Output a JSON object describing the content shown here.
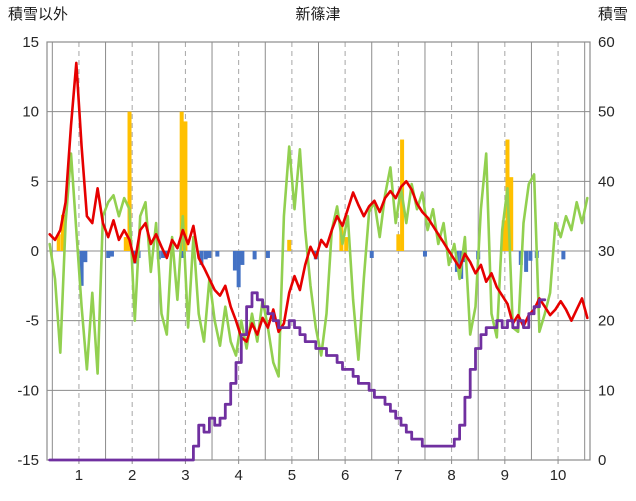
{
  "header": {
    "left_label": "積雪以外",
    "title": "新篠津",
    "right_label": "積雪"
  },
  "chart_data": {
    "type": "combo",
    "title": "新篠津",
    "legend": "none",
    "grid": "on",
    "left_axis": {
      "label": "積雪以外",
      "min": -15,
      "max": 15,
      "ticks": [
        15,
        10,
        5,
        0,
        -5,
        -10,
        -15
      ]
    },
    "right_axis": {
      "label": "積雪",
      "min": 0,
      "max": 60,
      "ticks": [
        60,
        50,
        40,
        30,
        20,
        10,
        0
      ]
    },
    "x_axis": {
      "min": 0.4,
      "max": 10.6,
      "ticks": [
        1,
        2,
        3,
        4,
        5,
        6,
        7,
        8,
        9,
        10
      ],
      "solid_gridlines": [
        0.5,
        1.5,
        2.5,
        3.5,
        4.5,
        5.5,
        6.5,
        7.5,
        8.5,
        9.5,
        10.5
      ]
    },
    "colors": {
      "red_line": "#e60000",
      "green_line": "#92d050",
      "purple_line": "#7030a0",
      "orange_bars": "#ffc000",
      "blue_bars": "#4472c4",
      "grid": "#8c8c8c"
    },
    "series": [
      {
        "name": "orange-bars",
        "type": "bar",
        "axis": "left",
        "color": "#ffc000",
        "points": [
          [
            0.62,
            1.2
          ],
          [
            0.7,
            2.6
          ],
          [
            1.88,
            1.0
          ],
          [
            1.95,
            10
          ],
          [
            2.93,
            10
          ],
          [
            3.0,
            9.3
          ],
          [
            4.95,
            0.8
          ],
          [
            5.93,
            1.8
          ],
          [
            6.02,
            1.0
          ],
          [
            7.0,
            1.2
          ],
          [
            7.07,
            8
          ],
          [
            8.98,
            2.2
          ],
          [
            9.05,
            8
          ],
          [
            9.12,
            5.3
          ]
        ]
      },
      {
        "name": "blue-bars",
        "type": "bar",
        "axis": "left",
        "color": "#4472c4",
        "points": [
          [
            1.05,
            -2.5
          ],
          [
            1.12,
            -0.8
          ],
          [
            1.55,
            -0.5
          ],
          [
            1.62,
            -0.4
          ],
          [
            2.05,
            -0.9
          ],
          [
            2.12,
            -0.5
          ],
          [
            2.5,
            -0.6
          ],
          [
            2.58,
            -0.5
          ],
          [
            2.65,
            -0.4
          ],
          [
            2.95,
            -0.5
          ],
          [
            3.3,
            -1
          ],
          [
            3.38,
            -0.6
          ],
          [
            3.45,
            -0.5
          ],
          [
            3.6,
            -0.4
          ],
          [
            3.93,
            -1.4
          ],
          [
            4.0,
            -2.6
          ],
          [
            4.07,
            -1
          ],
          [
            4.3,
            -0.6
          ],
          [
            4.55,
            -0.5
          ],
          [
            5.45,
            -0.6
          ],
          [
            6.5,
            -0.5
          ],
          [
            7.5,
            -0.4
          ],
          [
            8.1,
            -1.5
          ],
          [
            8.18,
            -2
          ],
          [
            8.25,
            -0.8
          ],
          [
            8.5,
            -0.6
          ],
          [
            9.3,
            -1
          ],
          [
            9.4,
            -1.5
          ],
          [
            9.48,
            -0.7
          ],
          [
            9.6,
            -0.5
          ],
          [
            10.1,
            -0.6
          ]
        ]
      },
      {
        "name": "green-line",
        "type": "line",
        "axis": "left",
        "color": "#92d050",
        "x_start": 0.45,
        "x_step": 0.1,
        "y": [
          0.5,
          -2,
          -7.3,
          2,
          7,
          1.5,
          -4,
          -8.5,
          -3,
          -8.8,
          2.5,
          3.5,
          4,
          2.5,
          3.8,
          3,
          -5,
          2.5,
          3.5,
          -1.5,
          2,
          -4.5,
          -6,
          1,
          -3.5,
          2.5,
          -5.5,
          1,
          -4.5,
          -6.5,
          -2,
          -5,
          -6.8,
          -4,
          -6.5,
          -7.5,
          -5,
          -7,
          -4.5,
          -6.5,
          -3.5,
          -5.5,
          -8,
          -9,
          2.5,
          7.5,
          3,
          7.3,
          1.5,
          -2.5,
          -5.5,
          -7.5,
          -4.5,
          1.5,
          3.2,
          0.5,
          2.5,
          -3.5,
          -7.8,
          -2,
          2.8,
          3.5,
          1,
          4,
          6,
          2,
          4.5,
          2,
          4.8,
          3,
          4.2,
          1.5,
          3,
          0.5,
          2,
          -1,
          0.5,
          -2,
          1,
          -6,
          -4,
          3,
          7,
          -4.5,
          -6.2,
          1.5,
          4.5,
          -5.5,
          -5.8,
          2,
          4.8,
          5.5,
          -5.8,
          -4.5,
          -3,
          2,
          1,
          2.5,
          1.5,
          3.5,
          2,
          3.8
        ]
      },
      {
        "name": "red-line",
        "type": "line",
        "axis": "left",
        "color": "#e60000",
        "x_start": 0.45,
        "x_step": 0.1,
        "y": [
          1.2,
          0.8,
          1.5,
          3.5,
          9,
          13.5,
          7.5,
          2.5,
          2,
          4.5,
          2,
          1,
          2.2,
          0.8,
          1.5,
          0.8,
          -0.8,
          1.5,
          2,
          0.5,
          1.2,
          0.3,
          -0.5,
          0.8,
          0.2,
          1.5,
          0.5,
          1.8,
          -0.5,
          -1.2,
          -2,
          -2.8,
          -3.2,
          -2.5,
          -4,
          -5,
          -6.2,
          -6.5,
          -5.2,
          -6,
          -4.8,
          -5.5,
          -4.2,
          -5.8,
          -5.2,
          -3,
          -1.8,
          -2.8,
          -1,
          0.3,
          -0.5,
          0.8,
          0.3,
          1.5,
          2.5,
          1.8,
          3,
          4.2,
          3.3,
          2.5,
          3.2,
          3.6,
          2.8,
          3.8,
          4.3,
          3.8,
          4.6,
          5,
          4.4,
          3.4,
          2.8,
          2.4,
          1.8,
          1.2,
          0.6,
          0,
          -0.6,
          -1.2,
          -0.2,
          -0.8,
          -1.6,
          -1,
          -2.2,
          -1.6,
          -2.6,
          -3.2,
          -3.8,
          -5.2,
          -4.6,
          -5.4,
          -4.6,
          -4.2,
          -3.4,
          -4,
          -4.6,
          -4.2,
          -3.6,
          -4.2,
          -5,
          -4.2,
          -3.4,
          -4.8
        ]
      },
      {
        "name": "purple-snow-depth",
        "type": "step-line",
        "axis": "right",
        "color": "#7030a0",
        "x_start": 0.45,
        "x_step": 0.1,
        "y": [
          0,
          0,
          0,
          0,
          0,
          0,
          0,
          0,
          0,
          0,
          0,
          0,
          0,
          0,
          0,
          0,
          0,
          0,
          0,
          0,
          0,
          0,
          0,
          0,
          0,
          0,
          0,
          2,
          5,
          4,
          6,
          5,
          6,
          8,
          11,
          14,
          18,
          22,
          24,
          23,
          22,
          21,
          20,
          19,
          19,
          20,
          19,
          18,
          17,
          17,
          16,
          16,
          15,
          15,
          14,
          13,
          13,
          12,
          11,
          11,
          10,
          9,
          9,
          8,
          7,
          6,
          5,
          4,
          3,
          3,
          2,
          2,
          2,
          2,
          2,
          2,
          3,
          5,
          9,
          13,
          16,
          18,
          19,
          19,
          20,
          19,
          20,
          19,
          20,
          19,
          21,
          22,
          23,
          23
        ]
      }
    ]
  }
}
